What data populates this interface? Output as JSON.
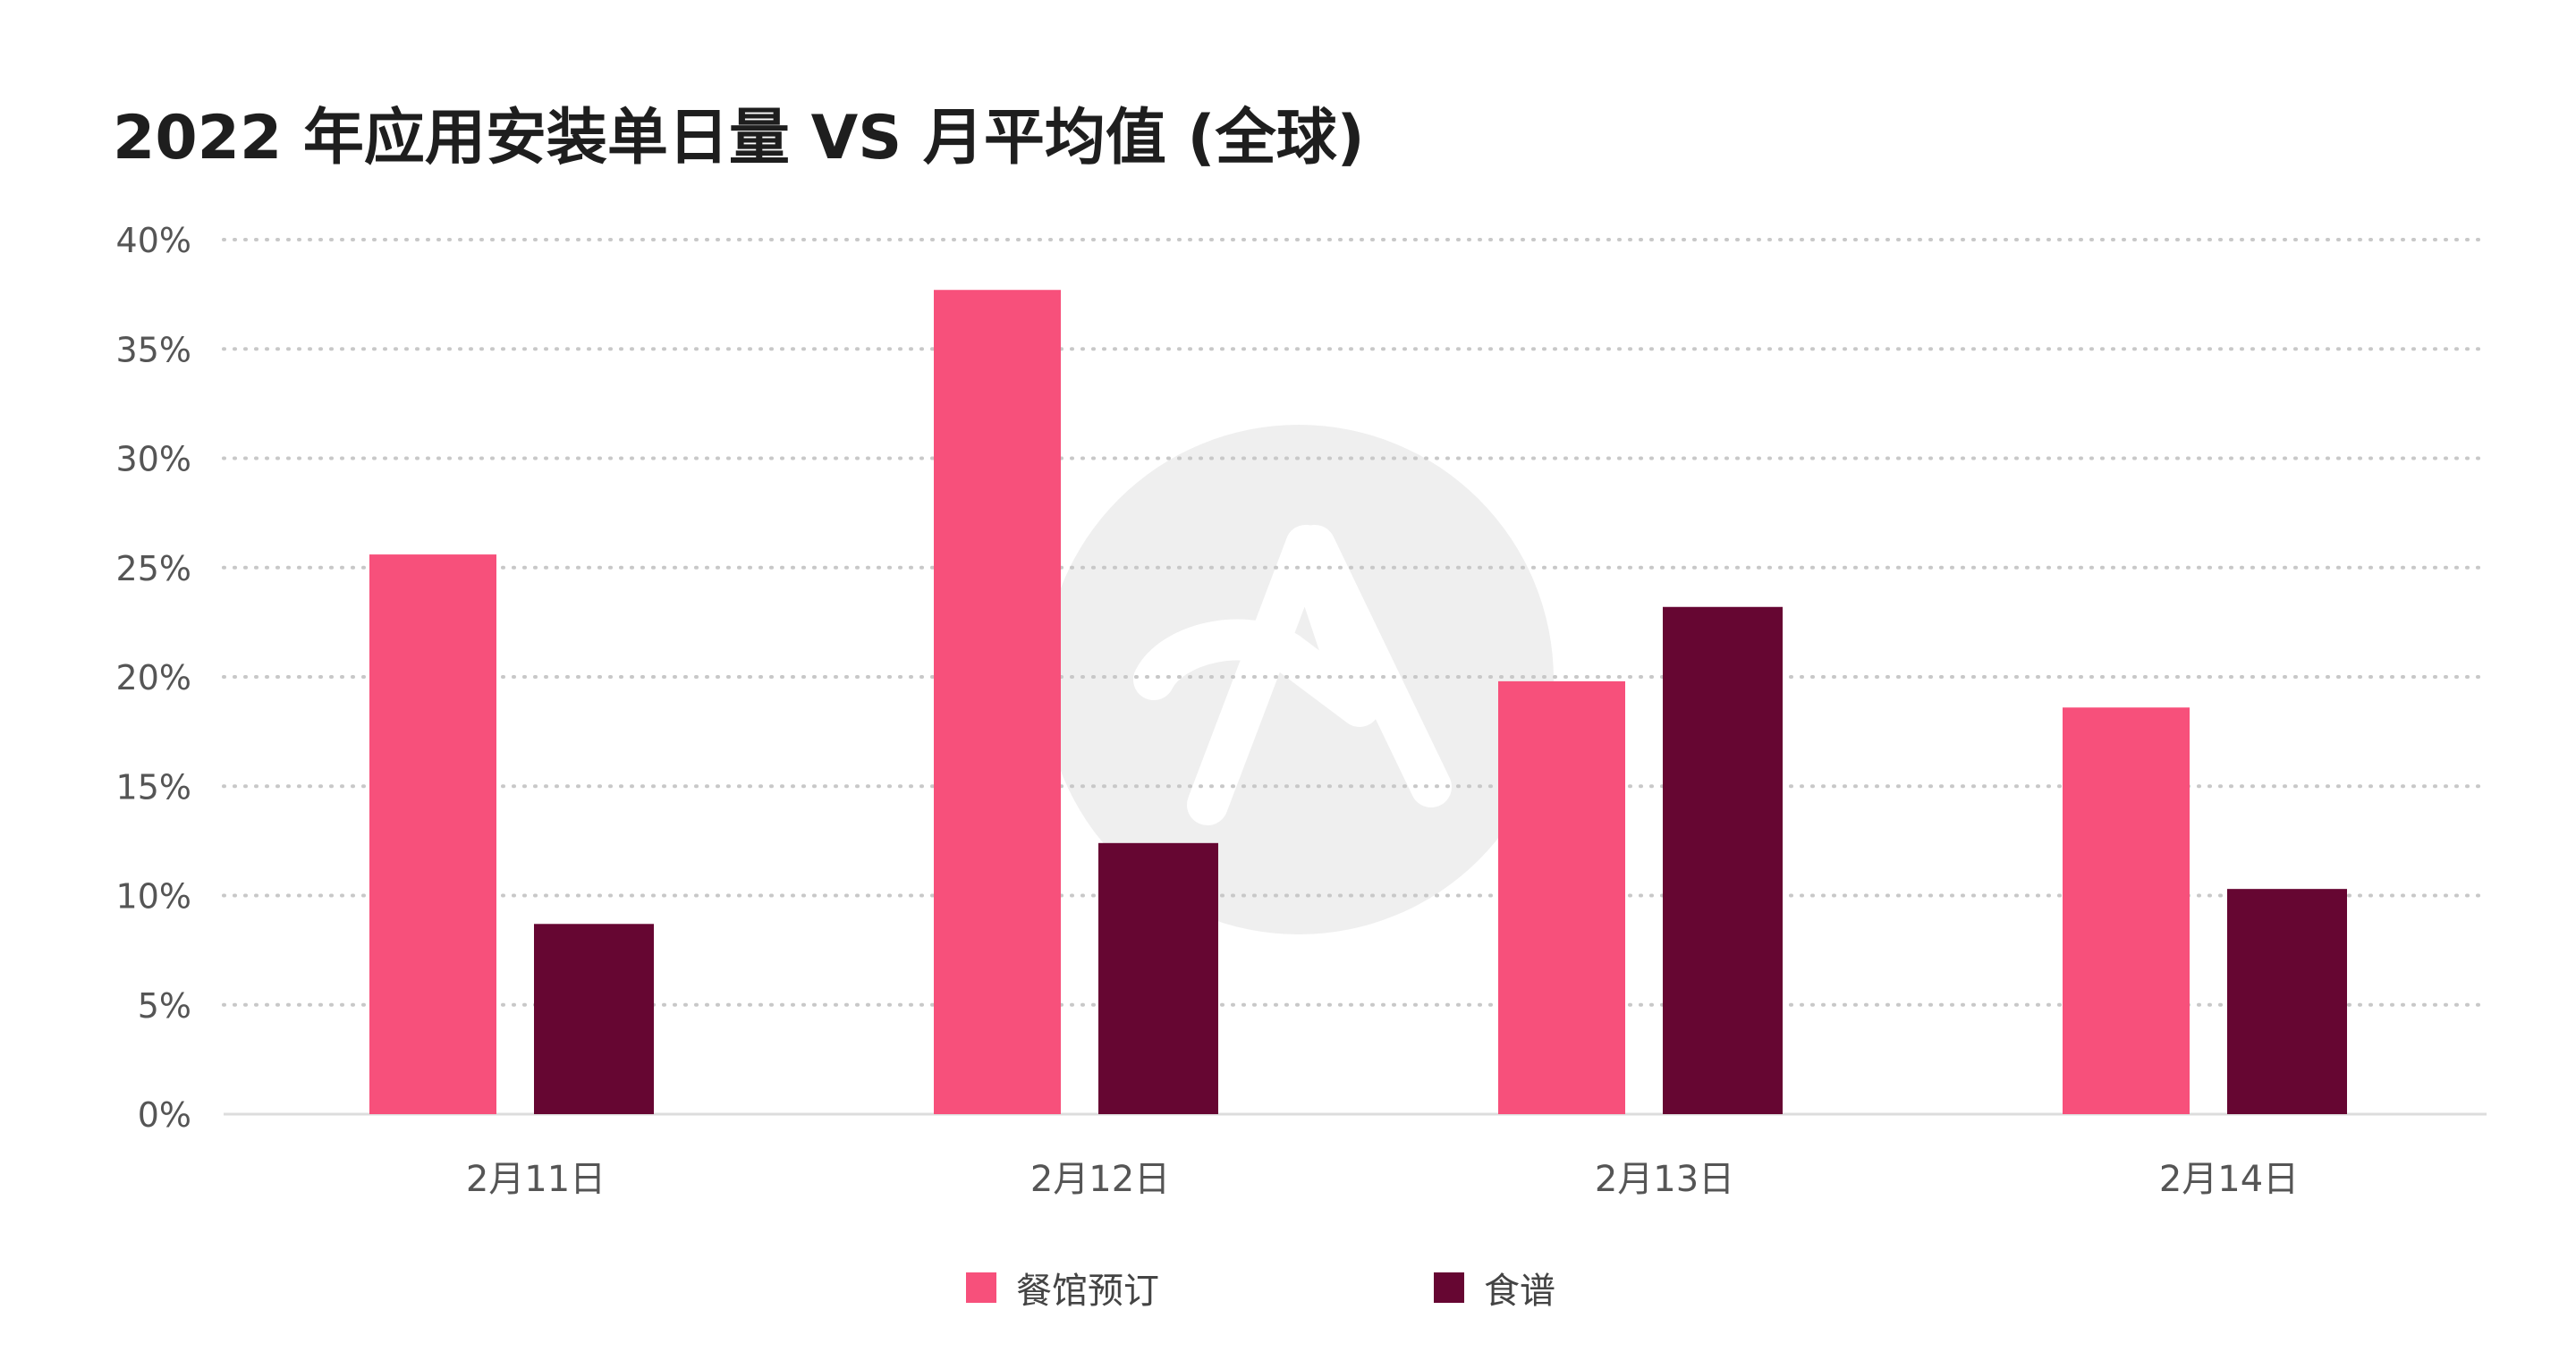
{
  "header": {
    "title": "2022 年应用安装单日量 VS 月平均值 (全球)"
  },
  "colors": {
    "restaurant": "#f7507b",
    "recipe": "#660632",
    "grid": "#c8c8c8",
    "axis": "#dddddd",
    "tick_text": "#555555",
    "watermark": "#efefef"
  },
  "watermark": {
    "icon": "apptopia-logo-icon"
  },
  "chart_data": {
    "type": "bar",
    "title": "2022 年应用安装单日量 VS 月平均值 (全球)",
    "categories": [
      "2月11日",
      "2月12日",
      "2月13日",
      "2月14日"
    ],
    "series": [
      {
        "name": "餐馆预订",
        "values": [
          25.6,
          37.7,
          19.8,
          18.6
        ]
      },
      {
        "name": "食谱",
        "values": [
          8.7,
          12.4,
          23.2,
          10.3
        ]
      }
    ],
    "ylim": [
      0,
      40
    ],
    "yticks": [
      "0%",
      "5%",
      "10%",
      "15%",
      "20%",
      "25%",
      "30%",
      "35%",
      "40%"
    ],
    "ytick_values": [
      0,
      5,
      10,
      15,
      20,
      25,
      30,
      35,
      40
    ],
    "grid": true,
    "legend_position": "bottom"
  }
}
